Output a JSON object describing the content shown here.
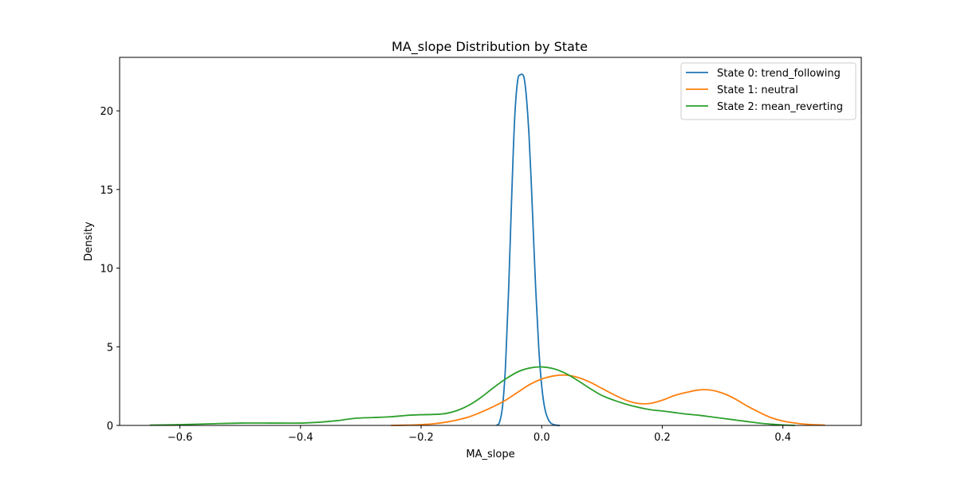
{
  "chart_data": {
    "type": "line",
    "title": "MA_slope Distribution by State",
    "xlabel": "MA_slope",
    "ylabel": "Density",
    "xlim": [
      -0.7,
      0.53
    ],
    "ylim": [
      0,
      23.4
    ],
    "xticks": [
      -0.6,
      -0.4,
      -0.2,
      0.0,
      0.2,
      0.4
    ],
    "xtick_labels": [
      "−0.6",
      "−0.4",
      "−0.2",
      "0.0",
      "0.2",
      "0.4"
    ],
    "yticks": [
      0,
      5,
      10,
      15,
      20
    ],
    "ytick_labels": [
      "0",
      "5",
      "10",
      "15",
      "20"
    ],
    "grid": false,
    "legend_position": "top-right",
    "series": [
      {
        "name": "State 0: trend_following",
        "color": "#1f77b4",
        "x": [
          -0.075,
          -0.07,
          -0.065,
          -0.06,
          -0.055,
          -0.05,
          -0.045,
          -0.04,
          -0.035,
          -0.03,
          -0.027,
          -0.024,
          -0.021,
          -0.018,
          -0.015,
          -0.01,
          -0.005,
          0.0,
          0.005,
          0.01,
          0.015,
          0.02,
          0.025,
          0.03
        ],
        "y": [
          0.0,
          0.2,
          1.2,
          3.8,
          8.5,
          14.3,
          19.4,
          21.9,
          22.3,
          22.2,
          21.5,
          20.2,
          18.4,
          16.0,
          13.3,
          8.7,
          5.0,
          2.5,
          1.1,
          0.45,
          0.15,
          0.05,
          0.01,
          0.0
        ]
      },
      {
        "name": "State 1: neutral",
        "color": "#ff7f0e",
        "x": [
          -0.25,
          -0.22,
          -0.2,
          -0.18,
          -0.16,
          -0.14,
          -0.12,
          -0.1,
          -0.08,
          -0.06,
          -0.04,
          -0.02,
          0.0,
          0.02,
          0.04,
          0.06,
          0.08,
          0.1,
          0.12,
          0.14,
          0.16,
          0.18,
          0.2,
          0.22,
          0.24,
          0.26,
          0.28,
          0.3,
          0.32,
          0.34,
          0.36,
          0.38,
          0.4,
          0.42,
          0.44,
          0.47
        ],
        "y": [
          0.0,
          0.02,
          0.05,
          0.1,
          0.2,
          0.35,
          0.55,
          0.85,
          1.2,
          1.6,
          2.1,
          2.6,
          2.95,
          3.15,
          3.2,
          3.05,
          2.75,
          2.35,
          1.95,
          1.6,
          1.4,
          1.4,
          1.6,
          1.9,
          2.1,
          2.25,
          2.25,
          2.05,
          1.7,
          1.25,
          0.85,
          0.5,
          0.28,
          0.15,
          0.07,
          0.02
        ]
      },
      {
        "name": "State 2: mean_reverting",
        "color": "#2ca02c",
        "x": [
          -0.65,
          -0.6,
          -0.55,
          -0.5,
          -0.45,
          -0.4,
          -0.37,
          -0.34,
          -0.31,
          -0.28,
          -0.25,
          -0.22,
          -0.2,
          -0.18,
          -0.16,
          -0.14,
          -0.12,
          -0.1,
          -0.08,
          -0.06,
          -0.04,
          -0.02,
          0.0,
          0.02,
          0.04,
          0.06,
          0.08,
          0.1,
          0.12,
          0.14,
          0.16,
          0.18,
          0.2,
          0.22,
          0.24,
          0.26,
          0.28,
          0.3,
          0.32,
          0.34,
          0.36,
          0.38,
          0.4,
          0.42
        ],
        "y": [
          0.02,
          0.05,
          0.1,
          0.15,
          0.15,
          0.15,
          0.2,
          0.3,
          0.45,
          0.5,
          0.55,
          0.65,
          0.68,
          0.7,
          0.75,
          0.95,
          1.3,
          1.8,
          2.4,
          2.95,
          3.4,
          3.65,
          3.72,
          3.6,
          3.3,
          2.85,
          2.35,
          1.9,
          1.6,
          1.35,
          1.15,
          1.0,
          0.92,
          0.82,
          0.72,
          0.65,
          0.55,
          0.45,
          0.35,
          0.25,
          0.15,
          0.08,
          0.03,
          0.0
        ]
      }
    ]
  }
}
